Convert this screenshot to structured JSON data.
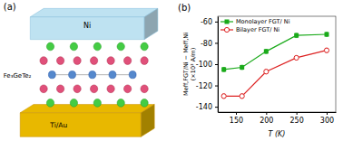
{
  "chart_data": {
    "type": "line",
    "annotations": [
      "(a)",
      "Ti/Au",
      "Ni",
      "Fe₃GeTe₂",
      "(b)"
    ],
    "xlabel": "T (K)",
    "ylabel": "Meff,FGT/Ni − Meff,Ni\n(×10³ A/m)",
    "x": [
      130,
      160,
      200,
      250,
      300
    ],
    "series": [
      {
        "name": "Monolayer FGT/ Ni",
        "color": "#1aaa1a",
        "marker": "square",
        "values": [
          -105,
          -103,
          -88,
          -73,
          -72
        ],
        "errors": [
          2.0,
          2.0,
          2.0,
          2.0,
          2.0
        ]
      },
      {
        "name": "Bilayer FGT/ Ni",
        "color": "#dd2222",
        "marker": "circle",
        "values": [
          -130,
          -130,
          -107,
          -94,
          -87
        ],
        "errors": [
          2.0,
          2.0,
          2.0,
          2.0,
          2.0
        ]
      }
    ],
    "xlim": [
      120,
      315
    ],
    "ylim": [
      -145,
      -55
    ],
    "xticks": [
      150,
      200,
      250,
      300
    ],
    "yticks": [
      -140,
      -120,
      -100,
      -80,
      -60
    ],
    "legend": "upper left"
  }
}
